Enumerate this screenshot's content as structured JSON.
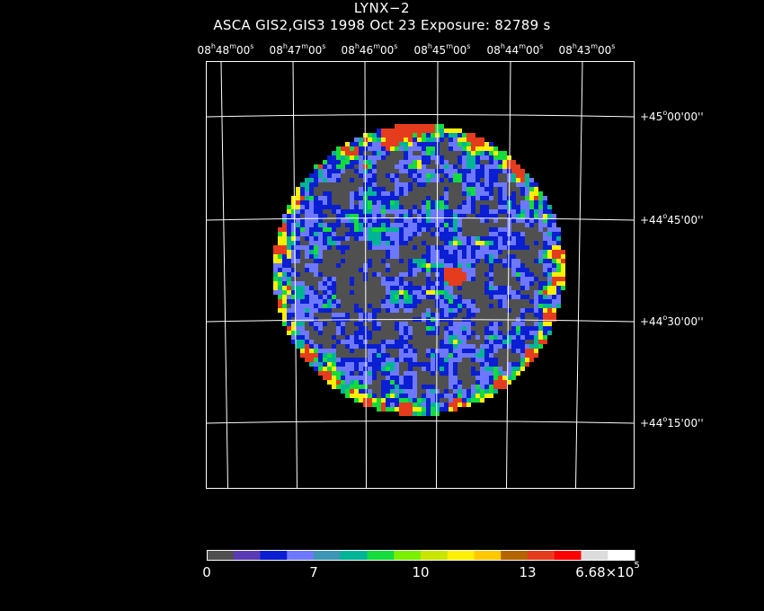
{
  "header": {
    "title": "LYNX−2",
    "subtitle": "ASCA GIS2,GIS3    1998 Oct 23    Exposure: 82789 s"
  },
  "ra_ticks": [
    {
      "h": "08",
      "m": "48",
      "s": "00"
    },
    {
      "h": "08",
      "m": "47",
      "s": "00"
    },
    {
      "h": "08",
      "m": "46",
      "s": "00"
    },
    {
      "h": "08",
      "m": "45",
      "s": "00"
    },
    {
      "h": "08",
      "m": "44",
      "s": "00"
    },
    {
      "h": "08",
      "m": "43",
      "s": "00"
    }
  ],
  "dec_ticks": [
    {
      "deg": "+45",
      "arcmin": "00",
      "arcsec": "00"
    },
    {
      "deg": "+44",
      "arcmin": "45",
      "arcsec": "00"
    },
    {
      "deg": "+44",
      "arcmin": "30",
      "arcsec": "00"
    },
    {
      "deg": "+44",
      "arcmin": "15",
      "arcsec": "00"
    }
  ],
  "colorbar": {
    "colors": [
      "#505050",
      "#5b3bb4",
      "#0a1ed2",
      "#6e78ff",
      "#3c96b4",
      "#00b496",
      "#14dc3c",
      "#78f000",
      "#c8e600",
      "#fff000",
      "#ffc800",
      "#b46400",
      "#e63c1e",
      "#ff0000",
      "#dcdcdc",
      "#ffffff"
    ],
    "labels": [
      {
        "text": "0"
      },
      {
        "text": "7"
      },
      {
        "text": "10"
      },
      {
        "text": "13"
      },
      {
        "text": "6.68×10",
        "sup": "5"
      }
    ]
  },
  "image_palette": {
    "background": "#505050",
    "low": "#0a1ed2",
    "mid": "#6e78ff",
    "teal": "#00b496",
    "green": "#14dc3c",
    "yellow": "#fff000",
    "red": "#e63c1e"
  }
}
